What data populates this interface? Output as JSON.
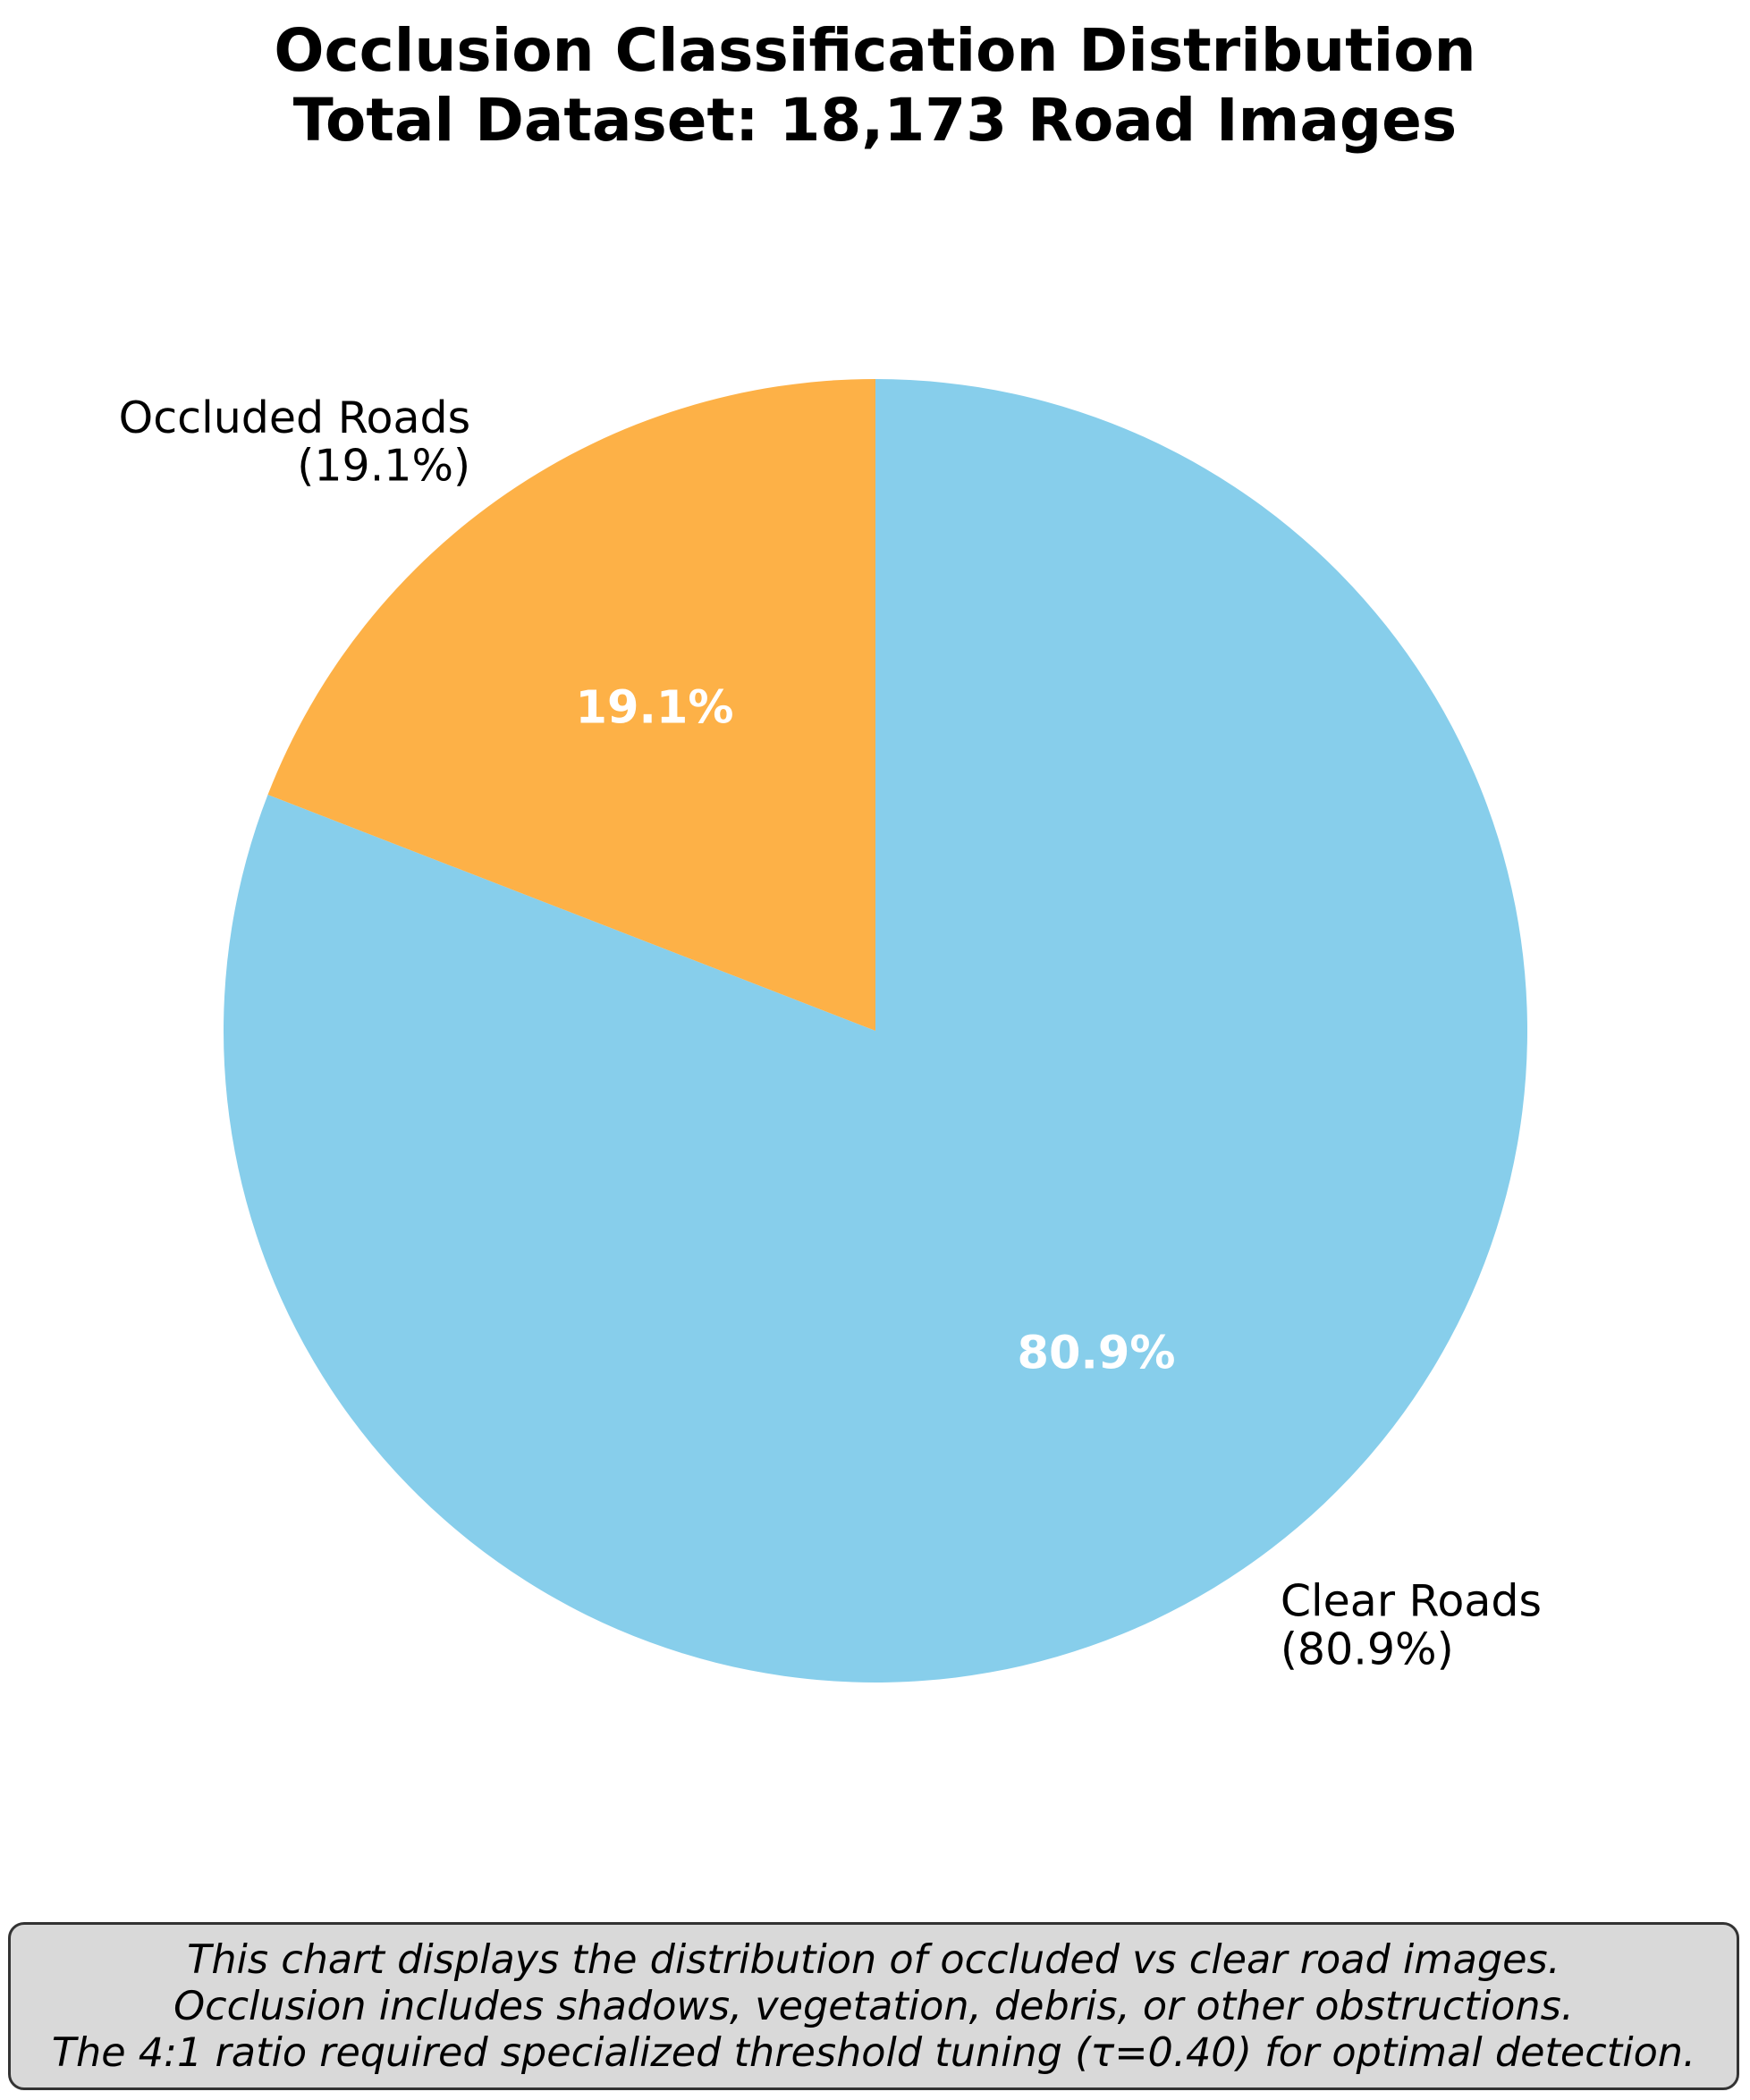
{
  "chart_data": {
    "type": "pie",
    "title": "Occlusion Classification Distribution",
    "subtitle": "Total Dataset: 18,173 Road Images",
    "start_angle": 90,
    "direction": "clockwise",
    "slices": [
      {
        "label": "Clear Roads",
        "value": 80.9,
        "outer_label_line1": "Clear Roads",
        "outer_label_line2": "(80.9%)",
        "inner_label": "80.9%",
        "color": "#87CEEB"
      },
      {
        "label": "Occluded Roads",
        "value": 19.1,
        "outer_label_line1": "Occluded Roads",
        "outer_label_line2": "(19.1%)",
        "inner_label": "19.1%",
        "color": "#FDB147"
      }
    ]
  },
  "note": {
    "line1": "This chart displays the distribution of occluded vs clear road images.",
    "line2": "Occlusion includes shadows, vegetation, debris, or other obstructions.",
    "line3": "The 4:1 ratio required specialized threshold tuning (τ=0.40) for optimal detection."
  }
}
